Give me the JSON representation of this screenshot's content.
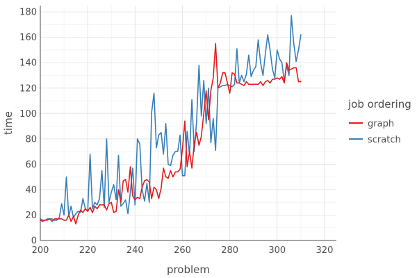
{
  "chart_data": {
    "type": "line",
    "title": "",
    "xlabel": "problem",
    "ylabel": "time",
    "xlim": [
      200,
      325
    ],
    "ylim": [
      0,
      185
    ],
    "xticks": [
      200,
      220,
      240,
      260,
      280,
      300,
      320
    ],
    "yticks": [
      0,
      20,
      40,
      60,
      80,
      100,
      120,
      140,
      160,
      180
    ],
    "grid": true,
    "legend": {
      "title": "job ordering",
      "position": "right"
    },
    "series": [
      {
        "name": "graph",
        "color": "#e41a1c",
        "x": [
          200,
          201,
          202,
          203,
          204,
          205,
          206,
          207,
          208,
          209,
          210,
          211,
          212,
          213,
          214,
          215,
          216,
          217,
          218,
          219,
          220,
          221,
          222,
          223,
          224,
          225,
          226,
          227,
          228,
          229,
          230,
          231,
          232,
          233,
          234,
          235,
          236,
          237,
          238,
          239,
          240,
          241,
          242,
          243,
          244,
          245,
          246,
          247,
          248,
          249,
          250,
          251,
          252,
          253,
          254,
          255,
          256,
          257,
          258,
          259,
          260,
          261,
          262,
          263,
          264,
          265,
          266,
          267,
          268,
          269,
          270,
          271,
          272,
          273,
          274,
          275,
          276,
          277,
          278,
          279,
          280,
          281,
          282,
          283,
          284,
          285,
          286,
          287,
          288,
          289,
          290,
          291,
          292,
          293,
          294,
          295,
          296,
          297,
          298,
          299,
          300,
          301,
          302,
          303,
          304,
          305,
          306,
          307,
          308,
          309,
          310
        ],
        "y": [
          16,
          15,
          16,
          16,
          17,
          15,
          17,
          17,
          17,
          17,
          16,
          16,
          20,
          15,
          19,
          13,
          20,
          24,
          22,
          25,
          23,
          26,
          22,
          27,
          25,
          28,
          28,
          28,
          24,
          29,
          30,
          22,
          23,
          40,
          30,
          47,
          48,
          38,
          58,
          35,
          32,
          34,
          33,
          42,
          47,
          48,
          46,
          33,
          42,
          40,
          33,
          41,
          57,
          50,
          49,
          55,
          50,
          54,
          54,
          56,
          72,
          94,
          58,
          70,
          57,
          76,
          85,
          75,
          82,
          100,
          118,
          95,
          118,
          128,
          155,
          120,
          124,
          132,
          132,
          124,
          116,
          132,
          131,
          124,
          124,
          123,
          122,
          125,
          123,
          123,
          123,
          123,
          123,
          125,
          122,
          125,
          126,
          124,
          127,
          127,
          128,
          127,
          129,
          124,
          140,
          134,
          135,
          136,
          136,
          125,
          125
        ]
      },
      {
        "name": "scratch",
        "color": "#377eb8",
        "x": [
          200,
          201,
          202,
          203,
          204,
          205,
          206,
          207,
          208,
          209,
          210,
          211,
          212,
          213,
          214,
          215,
          216,
          217,
          218,
          219,
          220,
          221,
          222,
          223,
          224,
          225,
          226,
          227,
          228,
          229,
          230,
          231,
          232,
          233,
          234,
          235,
          236,
          237,
          238,
          239,
          240,
          241,
          242,
          243,
          244,
          245,
          246,
          247,
          248,
          249,
          250,
          251,
          252,
          253,
          254,
          255,
          256,
          257,
          258,
          259,
          260,
          261,
          262,
          263,
          264,
          265,
          266,
          267,
          268,
          269,
          270,
          271,
          272,
          273,
          274,
          275,
          276,
          277,
          278,
          279,
          280,
          281,
          282,
          283,
          284,
          285,
          286,
          287,
          288,
          289,
          290,
          291,
          292,
          293,
          294,
          295,
          296,
          297,
          298,
          299,
          300,
          301,
          302,
          303,
          304,
          305,
          306,
          307,
          308,
          309,
          310
        ],
        "y": [
          17,
          16,
          16,
          17,
          17,
          17,
          16,
          16,
          18,
          29,
          20,
          50,
          19,
          27,
          18,
          21,
          23,
          22,
          33,
          25,
          23,
          68,
          25,
          30,
          28,
          33,
          55,
          26,
          80,
          30,
          38,
          44,
          32,
          67,
          27,
          29,
          32,
          21,
          38,
          57,
          28,
          80,
          76,
          40,
          31,
          45,
          30,
          101,
          116,
          73,
          83,
          85,
          68,
          92,
          60,
          59,
          67,
          70,
          70,
          83,
          51,
          51,
          86,
          67,
          111,
          70,
          94,
          138,
          98,
          126,
          92,
          120,
          77,
          96,
          71,
          120,
          121,
          122,
          122,
          123,
          122,
          121,
          123,
          151,
          124,
          130,
          125,
          131,
          146,
          129,
          134,
          137,
          158,
          140,
          130,
          147,
          162,
          150,
          135,
          128,
          150,
          143,
          140,
          125,
          138,
          130,
          177,
          155,
          141,
          150,
          162
        ]
      }
    ]
  }
}
